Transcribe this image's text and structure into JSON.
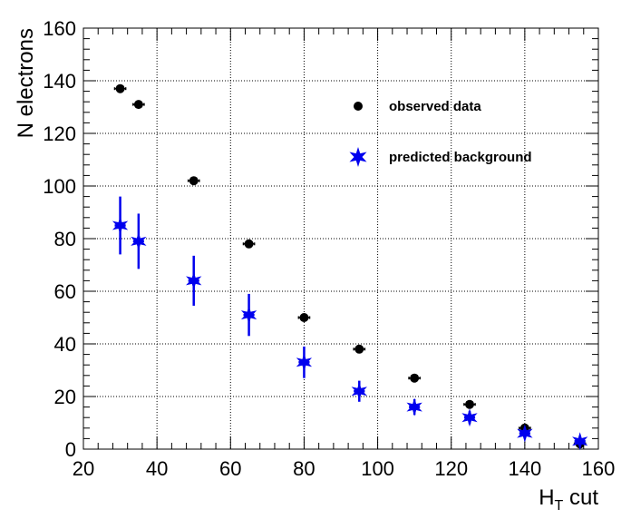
{
  "chart_data": {
    "type": "scatter",
    "title": "",
    "xlabel": "H",
    "xlabel_sub": "T",
    "xlabel_suffix": " cut",
    "ylabel": "N electrons",
    "xlim": [
      20,
      160
    ],
    "ylim": [
      0,
      160
    ],
    "x_ticks": [
      20,
      40,
      60,
      80,
      100,
      120,
      140,
      160
    ],
    "y_ticks": [
      0,
      20,
      40,
      60,
      80,
      100,
      120,
      140,
      160
    ],
    "grid": true,
    "legend_position": "top-right",
    "series": [
      {
        "name": "observed data",
        "color": "#000000",
        "marker": "circle",
        "x": [
          30,
          35,
          50,
          65,
          80,
          95,
          110,
          125,
          140,
          155
        ],
        "y": [
          137,
          131,
          102,
          78,
          50,
          38,
          27,
          17,
          8,
          2
        ],
        "x_err": [
          1.5,
          1.5,
          1.5,
          1.5,
          1.5,
          1.5,
          1.5,
          1.5,
          1.5,
          1.5
        ],
        "y_err": [
          0,
          0,
          0,
          0,
          0,
          0,
          0,
          0,
          0,
          0
        ]
      },
      {
        "name": "predicted background",
        "color": "#0000ee",
        "marker": "star",
        "x": [
          30,
          35,
          50,
          65,
          80,
          95,
          110,
          125,
          140,
          155
        ],
        "y": [
          85,
          79,
          64,
          51,
          33,
          22,
          16,
          12,
          6,
          3
        ],
        "x_err": [
          1.5,
          1.5,
          1.5,
          1.5,
          1.5,
          1.5,
          1.5,
          1.5,
          1.5,
          1.5
        ],
        "y_err": [
          11,
          10.5,
          9.5,
          8,
          6,
          4,
          3,
          2.5,
          2,
          1.5
        ]
      }
    ]
  }
}
